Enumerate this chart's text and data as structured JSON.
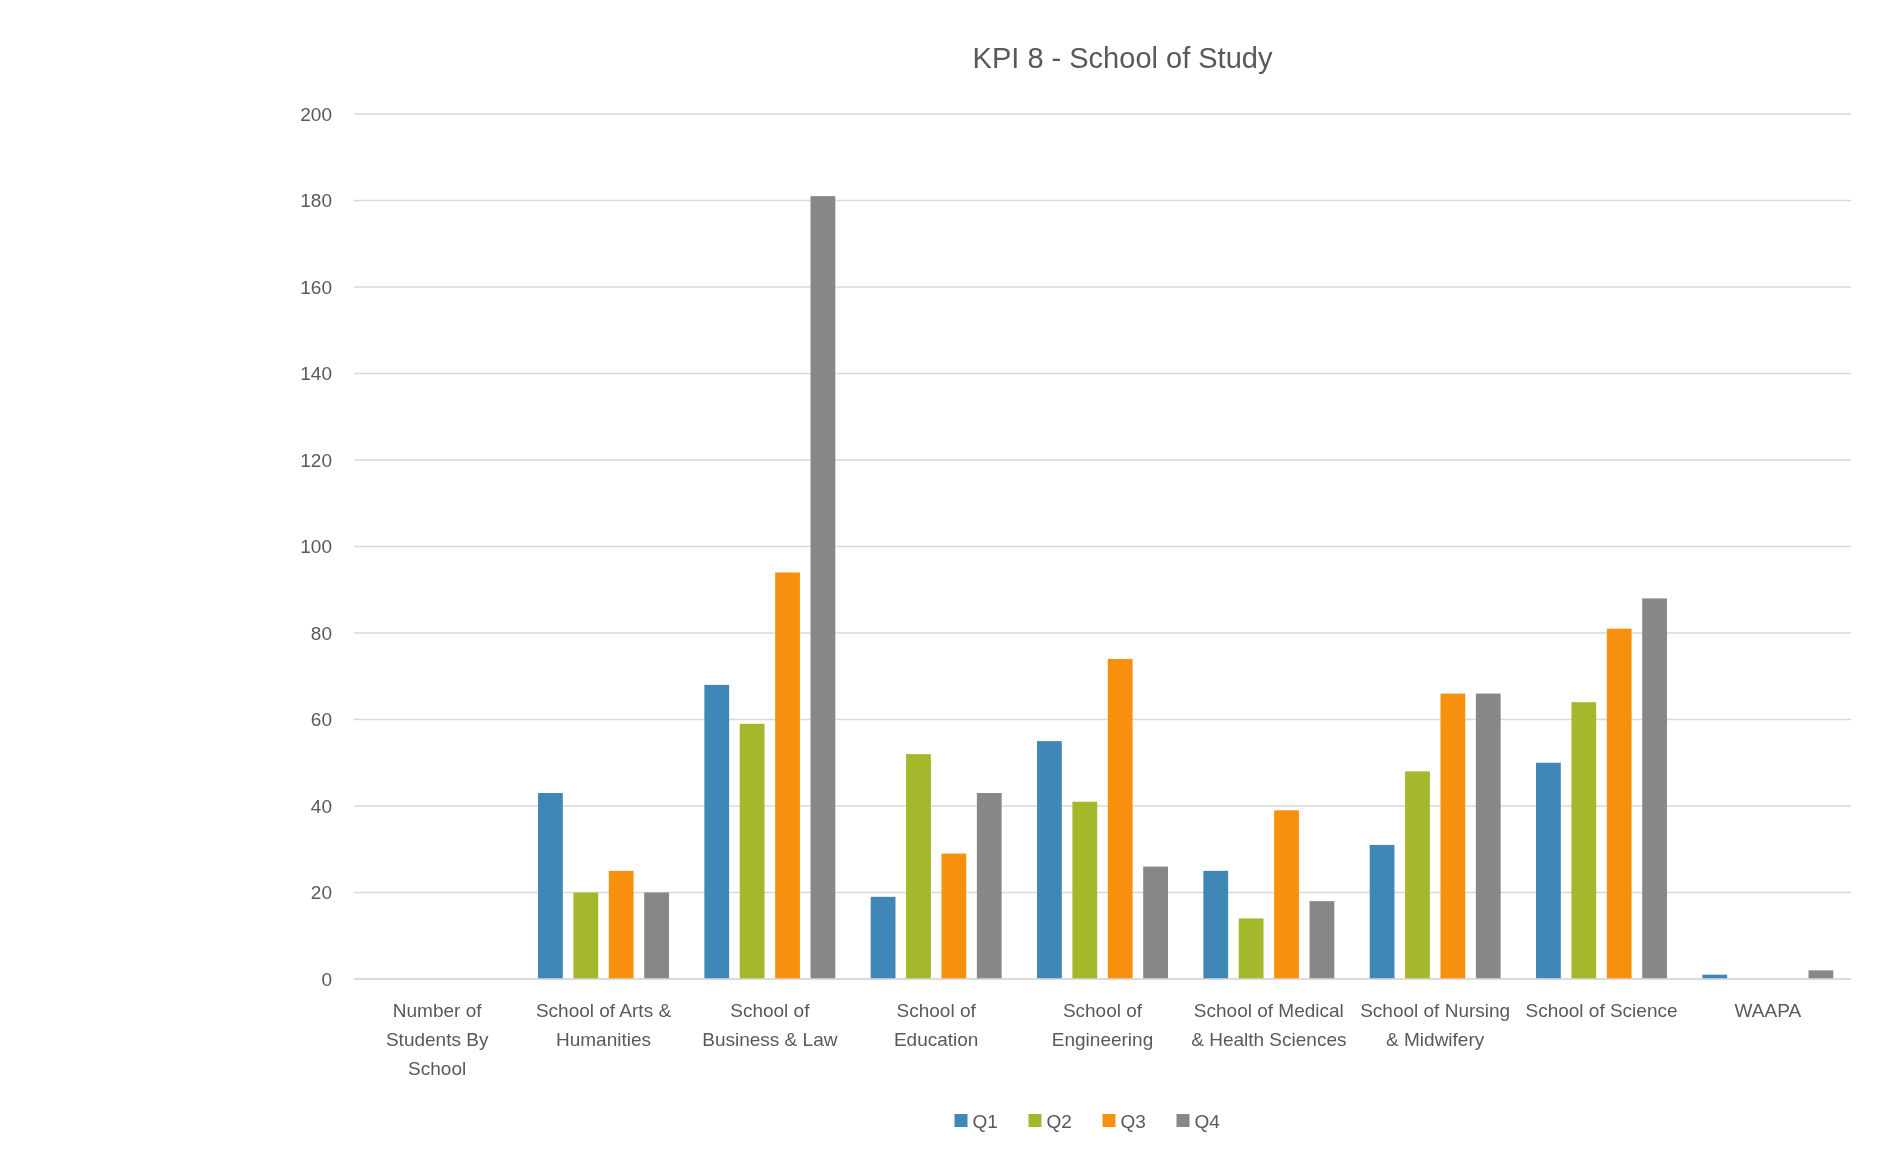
{
  "chart_data": {
    "type": "bar",
    "title": "KPI 8 - School of Study",
    "categories": [
      "Number of Students By School",
      "School of Arts & Humanities",
      "School of Business & Law",
      "School of Education",
      "School of Engineering",
      "School of Medical & Health Sciences",
      "School of Nursing & Midwifery",
      "School of Science",
      "WAAPA"
    ],
    "series": [
      {
        "name": "Q1",
        "color": "#3f87b6",
        "values": [
          null,
          43,
          68,
          19,
          55,
          25,
          31,
          50,
          1
        ]
      },
      {
        "name": "Q2",
        "color": "#a5b72a",
        "values": [
          null,
          20,
          59,
          52,
          41,
          14,
          48,
          64,
          null
        ]
      },
      {
        "name": "Q3",
        "color": "#f7900c",
        "values": [
          null,
          25,
          94,
          29,
          74,
          39,
          66,
          81,
          null
        ]
      },
      {
        "name": "Q4",
        "color": "#878787",
        "values": [
          null,
          20,
          181,
          43,
          26,
          18,
          66,
          88,
          2
        ]
      }
    ],
    "ylim": [
      0,
      200
    ],
    "yticks": [
      0,
      20,
      40,
      60,
      80,
      100,
      120,
      140,
      160,
      180,
      200
    ],
    "grid": "y",
    "legend": "bottom"
  }
}
